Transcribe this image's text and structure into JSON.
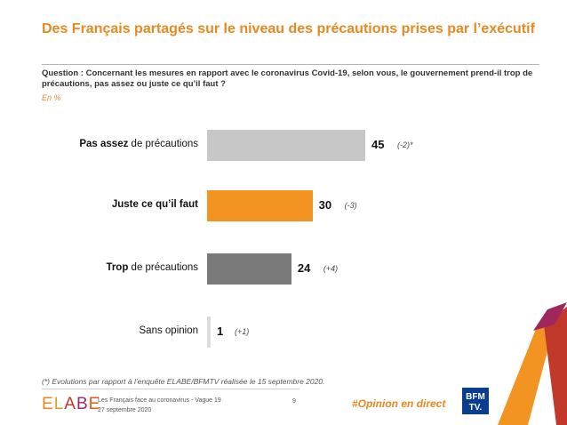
{
  "title": "Des Français partagés sur le niveau des précautions prises par l’exécutif",
  "question": "Question : Concernant les mesures en rapport avec le coronavirus Covid-19, selon vous, le gouvernement prend-il trop de précautions, pas assez ou juste ce qu’il faut ?",
  "unit": "En %",
  "chart_data": {
    "type": "bar",
    "orientation": "horizontal",
    "categories": [
      {
        "bold": "Pas assez",
        "rest": " de précautions",
        "value": 45,
        "evolution": "(-2)*",
        "color": "#c7c7c7"
      },
      {
        "bold": "Juste ce qu’il faut",
        "rest": "",
        "value": 30,
        "evolution": "(-3)",
        "color": "#f39422"
      },
      {
        "bold": "Trop",
        "rest": " de précautions",
        "value": 24,
        "evolution": "(+4)",
        "color": "#7a7a7a"
      },
      {
        "bold": "",
        "rest": "Sans opinion",
        "value": 1,
        "evolution": "(+1)",
        "color": "#dcdcdc"
      }
    ],
    "xlim": [
      0,
      100
    ]
  },
  "footnote": "(*) Evolutions par rapport à l’enquête ELABE/BFMTV réalisée le 15 septembre 2020.",
  "footer": {
    "logo": "ELABE",
    "line1": "Les Français face au coronavirus - Vague 19",
    "line2": "27 septembre 2020",
    "page": "9",
    "hashtag": "#Opinion en direct",
    "bfm_top": "BFM",
    "bfm_bottom": "TV."
  }
}
